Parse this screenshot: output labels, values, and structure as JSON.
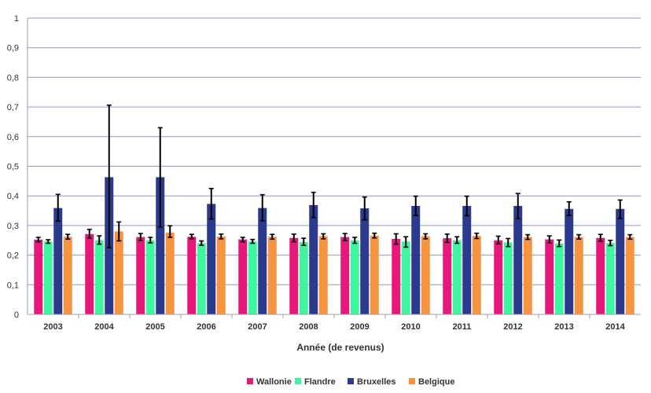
{
  "chart_data": {
    "type": "bar",
    "xlabel": "Année (de revenus)",
    "ylabel": "",
    "ylim": [
      0,
      1
    ],
    "yticks": [
      "0",
      "0,1",
      "0,2",
      "0,3",
      "0,4",
      "0,5",
      "0,6",
      "0,7",
      "0,8",
      "0,9",
      "1"
    ],
    "grid": true,
    "legend_position": "bottom",
    "categories": [
      "2003",
      "2004",
      "2005",
      "2006",
      "2007",
      "2008",
      "2009",
      "2010",
      "2011",
      "2012",
      "2013",
      "2014"
    ],
    "series": [
      {
        "name": "Wallonie",
        "color": "#e8187a",
        "values": [
          0.252,
          0.271,
          0.261,
          0.262,
          0.253,
          0.258,
          0.261,
          0.255,
          0.257,
          0.25,
          0.253,
          0.258
        ],
        "err_low": [
          0.245,
          0.257,
          0.249,
          0.255,
          0.245,
          0.245,
          0.249,
          0.237,
          0.243,
          0.238,
          0.241,
          0.247
        ],
        "err_high": [
          0.26,
          0.287,
          0.273,
          0.27,
          0.26,
          0.271,
          0.273,
          0.272,
          0.271,
          0.264,
          0.265,
          0.27
        ]
      },
      {
        "name": "Flandre",
        "color": "#3ef5a0",
        "values": [
          0.246,
          0.25,
          0.25,
          0.24,
          0.246,
          0.244,
          0.25,
          0.246,
          0.25,
          0.243,
          0.239,
          0.241
        ],
        "err_low": [
          0.24,
          0.237,
          0.241,
          0.233,
          0.24,
          0.233,
          0.24,
          0.227,
          0.24,
          0.229,
          0.229,
          0.232
        ],
        "err_high": [
          0.252,
          0.265,
          0.26,
          0.248,
          0.253,
          0.257,
          0.26,
          0.262,
          0.262,
          0.256,
          0.251,
          0.25
        ]
      },
      {
        "name": "Bruxelles",
        "color": "#2b3a8c",
        "values": [
          0.359,
          0.463,
          0.463,
          0.373,
          0.359,
          0.369,
          0.358,
          0.366,
          0.366,
          0.366,
          0.356,
          0.356
        ],
        "err_low": [
          0.315,
          0.225,
          0.295,
          0.322,
          0.316,
          0.327,
          0.319,
          0.334,
          0.333,
          0.323,
          0.334,
          0.324
        ],
        "err_high": [
          0.405,
          0.706,
          0.63,
          0.425,
          0.404,
          0.412,
          0.396,
          0.399,
          0.399,
          0.408,
          0.38,
          0.386
        ]
      },
      {
        "name": "Belgique",
        "color": "#f7943f",
        "values": [
          0.262,
          0.28,
          0.276,
          0.263,
          0.262,
          0.264,
          0.266,
          0.264,
          0.265,
          0.261,
          0.261,
          0.261
        ],
        "err_low": [
          0.254,
          0.248,
          0.26,
          0.255,
          0.254,
          0.255,
          0.258,
          0.255,
          0.256,
          0.253,
          0.254,
          0.254
        ],
        "err_high": [
          0.27,
          0.312,
          0.299,
          0.271,
          0.27,
          0.272,
          0.274,
          0.272,
          0.274,
          0.269,
          0.269,
          0.269
        ]
      }
    ]
  }
}
